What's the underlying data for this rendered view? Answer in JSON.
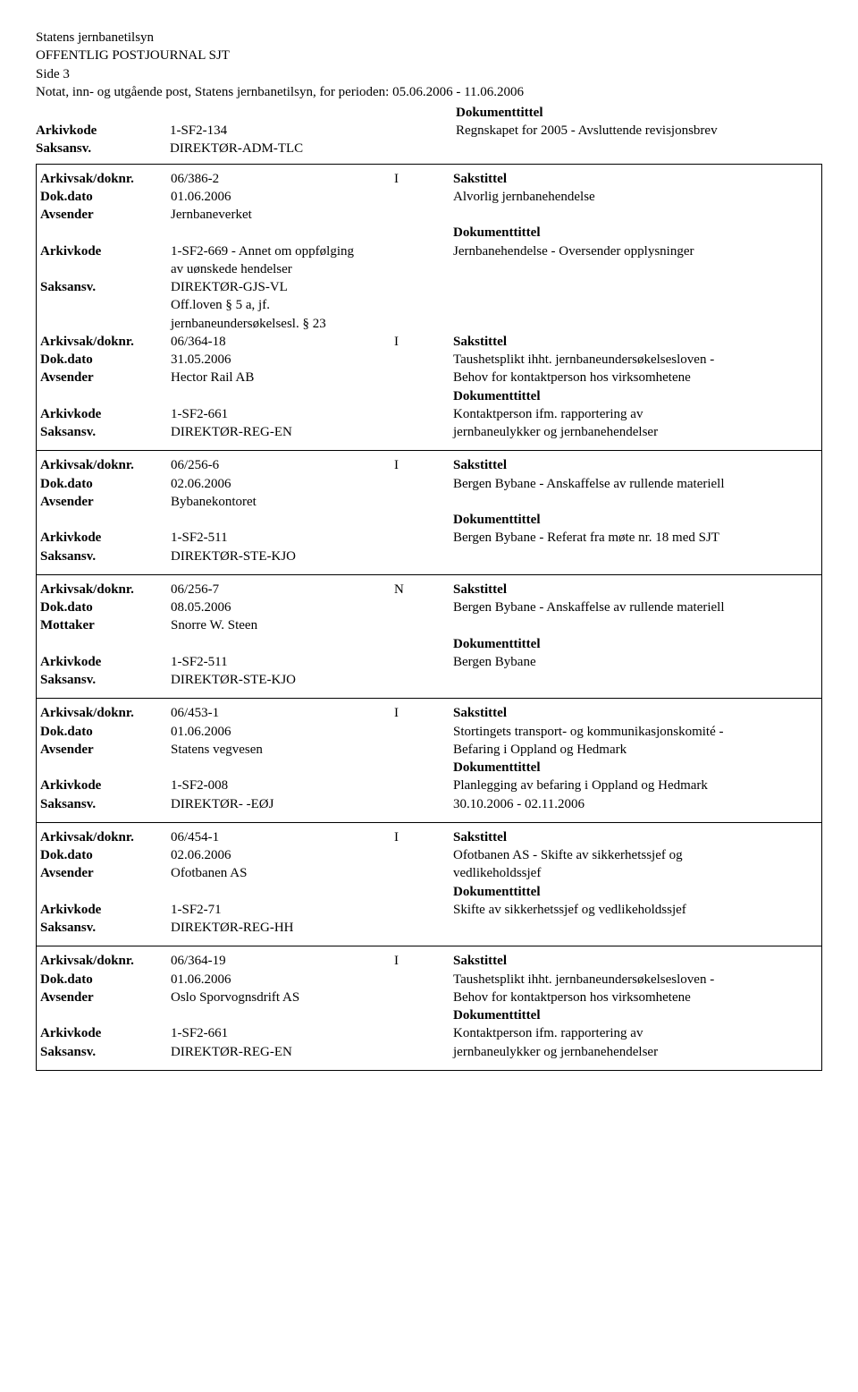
{
  "header": {
    "org": "Statens jernbanetilsyn",
    "journal": "OFFENTLIG POSTJOURNAL SJT",
    "page": "Side 3",
    "subtitle": "Notat, inn- og utgående post, Statens jernbanetilsyn, for perioden: 05.06.2006 - 11.06.2006",
    "doktittel_label": "Dokumenttittel"
  },
  "labels": {
    "arkivkode": "Arkivkode",
    "saksansv": "Saksansv.",
    "arkivsak": "Arkivsak/doknr.",
    "dokdato": "Dok.dato",
    "avsender": "Avsender",
    "mottaker": "Mottaker",
    "sakstittel": "Sakstittel",
    "doktittel": "Dokumenttittel"
  },
  "top_record": {
    "arkivkode": "1-SF2-134",
    "arkivkode_text": "Regnskapet for 2005 - Avsluttende revisjonsbrev",
    "saksansv": "DIREKTØR-ADM-TLC"
  },
  "entries": [
    {
      "arkivsak": "06/386-2",
      "io": "I",
      "dokdato": "01.06.2006",
      "sakstittel": "Alvorlig jernbanehendelse",
      "party_label": "Avsender",
      "party": "Jernbaneverket",
      "arkivkode_lines": [
        "1-SF2-669 - Annet om oppfølging",
        "av uønskede hendelser"
      ],
      "doktittel": "Jernbanehendelse  - Oversender opplysninger",
      "saksansv": "DIREKTØR-GJS-VL",
      "saksansv_extra": [
        "Off.loven § 5 a, jf.",
        "jernbaneundersøkelsesl. § 23"
      ],
      "merged": true,
      "next": {
        "arkivsak": "06/364-18",
        "io": "I",
        "dokdato": "31.05.2006",
        "sakstittel_lines": [
          "Taushetsplikt ihht. jernbaneundersøkelsesloven -",
          "Behov for kontaktperson hos virksomhetene"
        ],
        "party_label": "Avsender",
        "party": "Hector Rail AB",
        "arkivkode": "1-SF2-661",
        "doktittel_lines": [
          "Kontaktperson ifm. rapportering av",
          "jernbaneulykker og jernbanehendelser"
        ],
        "saksansv": "DIREKTØR-REG-EN"
      }
    },
    {
      "arkivsak": "06/256-6",
      "io": "I",
      "dokdato": "02.06.2006",
      "sakstittel": "Bergen Bybane - Anskaffelse av rullende materiell",
      "party_label": "Avsender",
      "party": "Bybanekontoret",
      "arkivkode": "1-SF2-511",
      "doktittel": "Bergen Bybane - Referat fra møte nr. 18 med SJT",
      "saksansv": "DIREKTØR-STE-KJO"
    },
    {
      "arkivsak": "06/256-7",
      "io": "N",
      "dokdato": "08.05.2006",
      "sakstittel": "Bergen Bybane - Anskaffelse av rullende materiell",
      "party_label": "Mottaker",
      "party": "Snorre W. Steen",
      "arkivkode": "1-SF2-511",
      "doktittel": "Bergen Bybane",
      "saksansv": "DIREKTØR-STE-KJO"
    },
    {
      "arkivsak": "06/453-1",
      "io": "I",
      "dokdato": "01.06.2006",
      "sakstittel_lines": [
        "Stortingets transport- og kommunikasjonskomité -",
        "Befaring i Oppland og Hedmark"
      ],
      "party_label": "Avsender",
      "party": "Statens vegvesen",
      "arkivkode": "1-SF2-008",
      "doktittel_lines": [
        "Planlegging av befaring i Oppland og Hedmark",
        "30.10.2006 - 02.11.2006"
      ],
      "saksansv": "DIREKTØR- -EØJ"
    },
    {
      "arkivsak": "06/454-1",
      "io": "I",
      "dokdato": "02.06.2006",
      "sakstittel_lines": [
        "Ofotbanen AS - Skifte av sikkerhetssjef og",
        "vedlikeholdssjef"
      ],
      "party_label": "Avsender",
      "party": "Ofotbanen AS",
      "arkivkode": "1-SF2-71",
      "doktittel": "Skifte av sikkerhetssjef og vedlikeholdssjef",
      "saksansv": "DIREKTØR-REG-HH"
    },
    {
      "arkivsak": "06/364-19",
      "io": "I",
      "dokdato": "01.06.2006",
      "sakstittel_lines": [
        "Taushetsplikt ihht. jernbaneundersøkelsesloven -",
        "Behov for kontaktperson hos virksomhetene"
      ],
      "party_label": "Avsender",
      "party": "Oslo Sporvognsdrift AS",
      "arkivkode": "1-SF2-661",
      "doktittel_lines": [
        "Kontaktperson ifm. rapportering av",
        "jernbaneulykker og jernbanehendelser"
      ],
      "saksansv": "DIREKTØR-REG-EN"
    }
  ]
}
